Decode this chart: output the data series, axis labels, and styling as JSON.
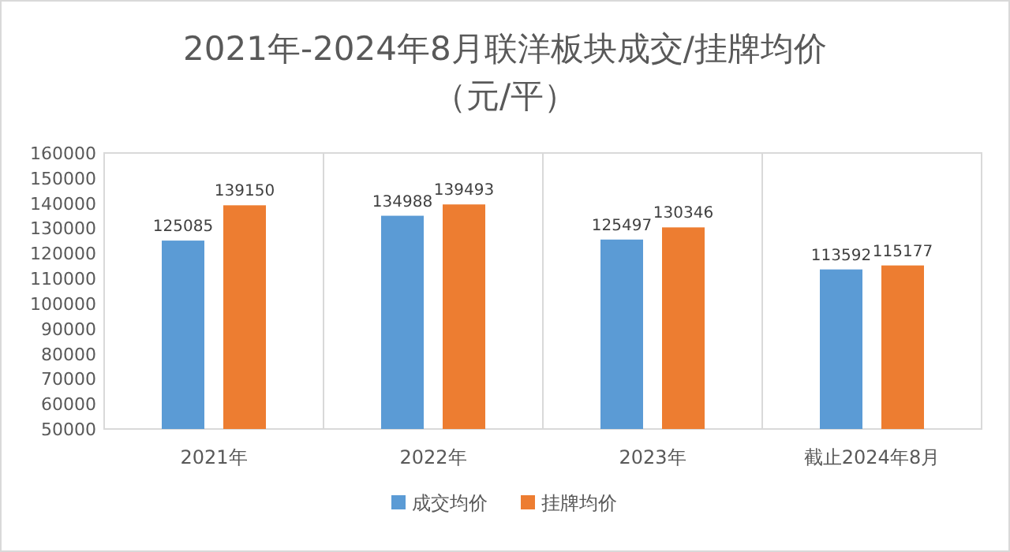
{
  "chart_data": {
    "type": "bar",
    "title": "2021年-2024年8月联洋板块成交/挂牌均价",
    "subtitle": "（元/平）",
    "categories": [
      "2021年",
      "2022年",
      "2023年",
      "截止2024年8月"
    ],
    "series": [
      {
        "name": "成交均价",
        "color": "#5b9bd5",
        "values": [
          125085,
          134988,
          125497,
          113592
        ]
      },
      {
        "name": "挂牌均价",
        "color": "#ed7d31",
        "values": [
          139150,
          139493,
          130346,
          115177
        ]
      }
    ],
    "ylim": [
      50000,
      160000
    ],
    "yticks": [
      50000,
      60000,
      70000,
      80000,
      90000,
      100000,
      110000,
      120000,
      130000,
      140000,
      150000,
      160000
    ],
    "data_labels": true,
    "legend": "bottom",
    "grid": false
  }
}
